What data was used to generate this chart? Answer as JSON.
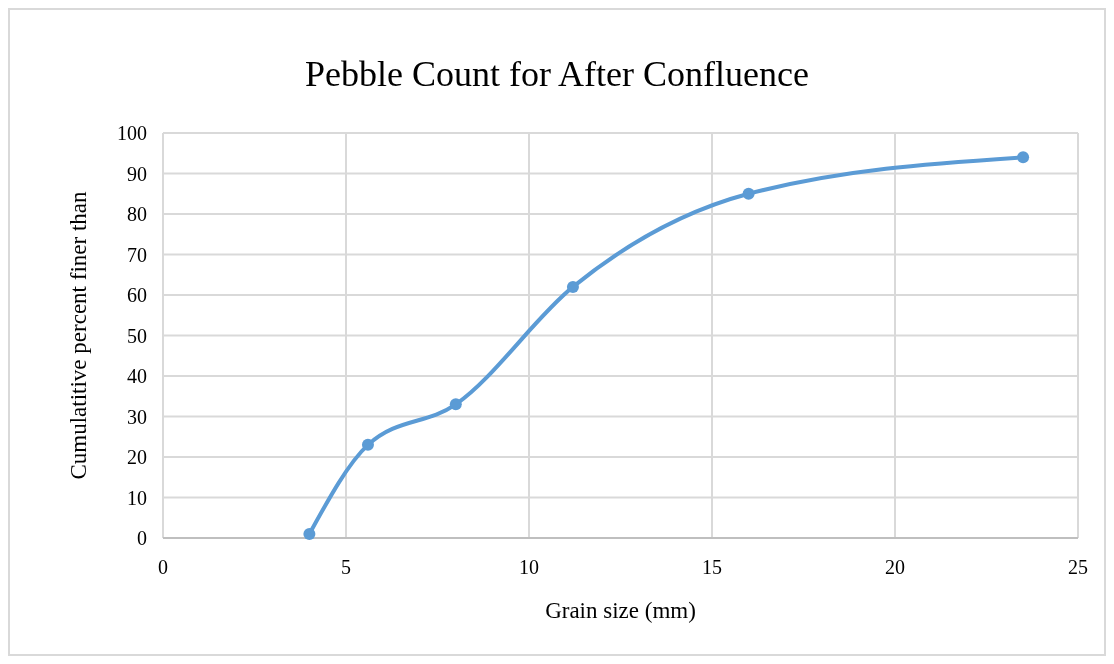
{
  "chart_data": {
    "type": "line",
    "title": "Pebble Count for After Confluence",
    "xlabel": "Grain size (mm)",
    "ylabel": "Cumulatitive percent  finer than",
    "x": [
      4,
      5.6,
      8,
      11.2,
      16,
      23.5
    ],
    "series": [
      {
        "color": "#5b9bd5",
        "values": [
          1,
          23,
          33,
          62,
          85,
          94
        ]
      }
    ],
    "xlim": [
      0,
      25
    ],
    "xticks": [
      0,
      5,
      10,
      15,
      20,
      25
    ],
    "ylim": [
      0,
      100
    ],
    "yticks": [
      0,
      10,
      20,
      30,
      40,
      50,
      60,
      70,
      80,
      90,
      100
    ],
    "grid": true,
    "marker": "circle",
    "line_style": "solid"
  }
}
